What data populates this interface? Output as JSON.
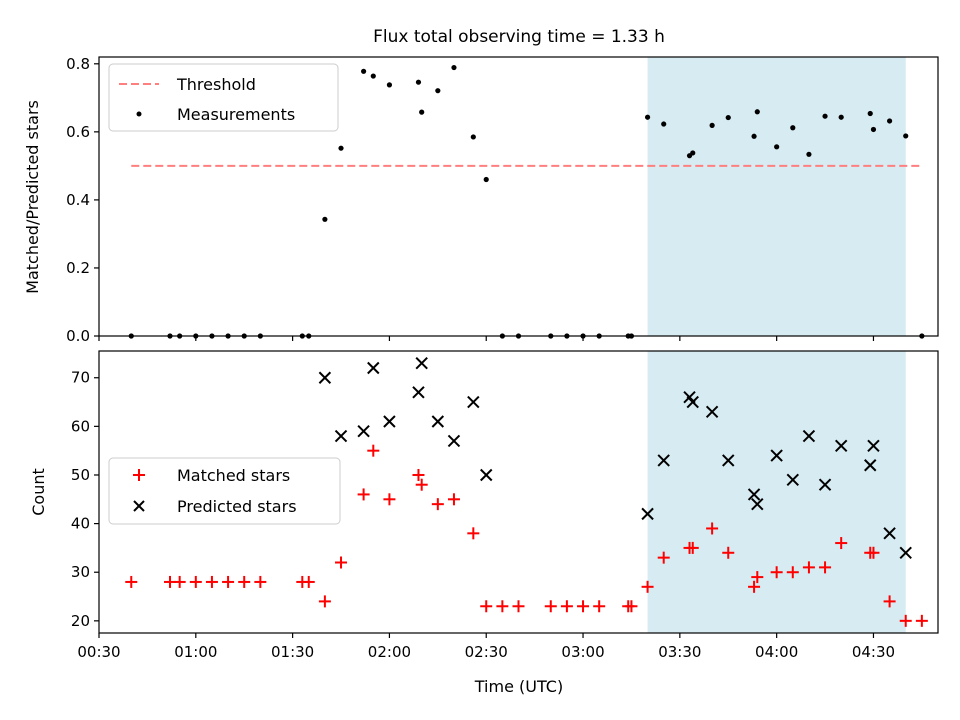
{
  "figure": {
    "title": "Flux total observing time = 1.33 h",
    "xlabel": "Time (UTC)",
    "x_ticks": [
      "00:30",
      "01:00",
      "01:30",
      "02:00",
      "02:30",
      "03:00",
      "03:30",
      "04:00",
      "04:30"
    ],
    "x_range": [
      "00:30",
      "04:50"
    ],
    "highlight_span": {
      "start": "03:20",
      "end": "04:40",
      "color": "#add8e6"
    }
  },
  "chart_data": [
    {
      "type": "scatter",
      "panel": "top",
      "title": "Flux total observing time = 1.33 h",
      "xlabel": "",
      "ylabel": "Matched/Predicted stars",
      "ylim": [
        0,
        0.82
      ],
      "y_ticks": [
        "0.0",
        "0.2",
        "0.4",
        "0.6",
        "0.8"
      ],
      "legend_position": "top-left",
      "threshold": {
        "name": "Threshold",
        "value": 0.5,
        "x_start": "00:40",
        "x_end": "04:45",
        "color": "#ff7f7f",
        "style": "dashed"
      },
      "series": [
        {
          "name": "Measurements",
          "color": "#000000",
          "marker": "dot",
          "points": [
            [
              "00:40",
              0.0
            ],
            [
              "00:52",
              0.0
            ],
            [
              "00:55",
              0.0
            ],
            [
              "01:00",
              0.0
            ],
            [
              "01:05",
              0.0
            ],
            [
              "01:10",
              0.0
            ],
            [
              "01:15",
              0.0
            ],
            [
              "01:20",
              0.0
            ],
            [
              "01:33",
              0.0
            ],
            [
              "01:35",
              0.0
            ],
            [
              "01:40",
              0.343
            ],
            [
              "01:45",
              0.552
            ],
            [
              "01:52",
              0.778
            ],
            [
              "01:55",
              0.764
            ],
            [
              "02:00",
              0.738
            ],
            [
              "02:09",
              0.746
            ],
            [
              "02:10",
              0.658
            ],
            [
              "02:15",
              0.721
            ],
            [
              "02:20",
              0.789
            ],
            [
              "02:26",
              0.585
            ],
            [
              "02:30",
              0.46
            ],
            [
              "02:35",
              0.0
            ],
            [
              "02:40",
              0.0
            ],
            [
              "02:50",
              0.0
            ],
            [
              "02:55",
              0.0
            ],
            [
              "03:00",
              0.0
            ],
            [
              "03:05",
              0.0
            ],
            [
              "03:14",
              0.0
            ],
            [
              "03:15",
              0.0
            ],
            [
              "03:20",
              0.643
            ],
            [
              "03:25",
              0.623
            ],
            [
              "03:33",
              0.53
            ],
            [
              "03:34",
              0.538
            ],
            [
              "03:40",
              0.619
            ],
            [
              "03:45",
              0.642
            ],
            [
              "03:53",
              0.587
            ],
            [
              "03:54",
              0.659
            ],
            [
              "04:00",
              0.556
            ],
            [
              "04:05",
              0.612
            ],
            [
              "04:10",
              0.534
            ],
            [
              "04:15",
              0.646
            ],
            [
              "04:20",
              0.643
            ],
            [
              "04:29",
              0.654
            ],
            [
              "04:30",
              0.607
            ],
            [
              "04:35",
              0.632
            ],
            [
              "04:40",
              0.588
            ],
            [
              "04:45",
              0.0
            ]
          ]
        }
      ]
    },
    {
      "type": "scatter",
      "panel": "bottom",
      "xlabel": "Time (UTC)",
      "ylabel": "Count",
      "ylim": [
        17.5,
        75.5
      ],
      "y_ticks": [
        "20",
        "30",
        "40",
        "50",
        "60",
        "70"
      ],
      "legend_position": "center-left",
      "series": [
        {
          "name": "Matched stars",
          "color": "#ff0000",
          "marker": "plus",
          "points": [
            [
              "00:40",
              28
            ],
            [
              "00:52",
              28
            ],
            [
              "00:55",
              28
            ],
            [
              "01:00",
              28
            ],
            [
              "01:05",
              28
            ],
            [
              "01:10",
              28
            ],
            [
              "01:15",
              28
            ],
            [
              "01:20",
              28
            ],
            [
              "01:33",
              28
            ],
            [
              "01:35",
              28
            ],
            [
              "01:40",
              24
            ],
            [
              "01:45",
              32
            ],
            [
              "01:52",
              46
            ],
            [
              "01:55",
              55
            ],
            [
              "02:00",
              45
            ],
            [
              "02:09",
              50
            ],
            [
              "02:10",
              48
            ],
            [
              "02:15",
              44
            ],
            [
              "02:20",
              45
            ],
            [
              "02:26",
              38
            ],
            [
              "02:30",
              23
            ],
            [
              "02:35",
              23
            ],
            [
              "02:40",
              23
            ],
            [
              "02:50",
              23
            ],
            [
              "02:55",
              23
            ],
            [
              "03:00",
              23
            ],
            [
              "03:05",
              23
            ],
            [
              "03:14",
              23
            ],
            [
              "03:15",
              23
            ],
            [
              "03:20",
              27
            ],
            [
              "03:25",
              33
            ],
            [
              "03:33",
              35
            ],
            [
              "03:34",
              35
            ],
            [
              "03:40",
              39
            ],
            [
              "03:45",
              34
            ],
            [
              "03:53",
              27
            ],
            [
              "03:54",
              29
            ],
            [
              "04:00",
              30
            ],
            [
              "04:05",
              30
            ],
            [
              "04:10",
              31
            ],
            [
              "04:15",
              31
            ],
            [
              "04:20",
              36
            ],
            [
              "04:29",
              34
            ],
            [
              "04:30",
              34
            ],
            [
              "04:35",
              24
            ],
            [
              "04:40",
              20
            ],
            [
              "04:45",
              20
            ]
          ]
        },
        {
          "name": "Predicted stars",
          "color": "#000000",
          "marker": "x",
          "points": [
            [
              "01:40",
              70
            ],
            [
              "01:45",
              58
            ],
            [
              "01:52",
              59
            ],
            [
              "01:55",
              72
            ],
            [
              "02:00",
              61
            ],
            [
              "02:09",
              67
            ],
            [
              "02:10",
              73
            ],
            [
              "02:15",
              61
            ],
            [
              "02:20",
              57
            ],
            [
              "02:26",
              65
            ],
            [
              "02:30",
              50
            ],
            [
              "03:20",
              42
            ],
            [
              "03:25",
              53
            ],
            [
              "03:33",
              66
            ],
            [
              "03:34",
              65
            ],
            [
              "03:40",
              63
            ],
            [
              "03:45",
              53
            ],
            [
              "03:53",
              46
            ],
            [
              "03:54",
              44
            ],
            [
              "04:00",
              54
            ],
            [
              "04:05",
              49
            ],
            [
              "04:10",
              58
            ],
            [
              "04:15",
              48
            ],
            [
              "04:20",
              56
            ],
            [
              "04:29",
              52
            ],
            [
              "04:30",
              56
            ],
            [
              "04:35",
              38
            ],
            [
              "04:40",
              34
            ]
          ]
        }
      ]
    }
  ]
}
